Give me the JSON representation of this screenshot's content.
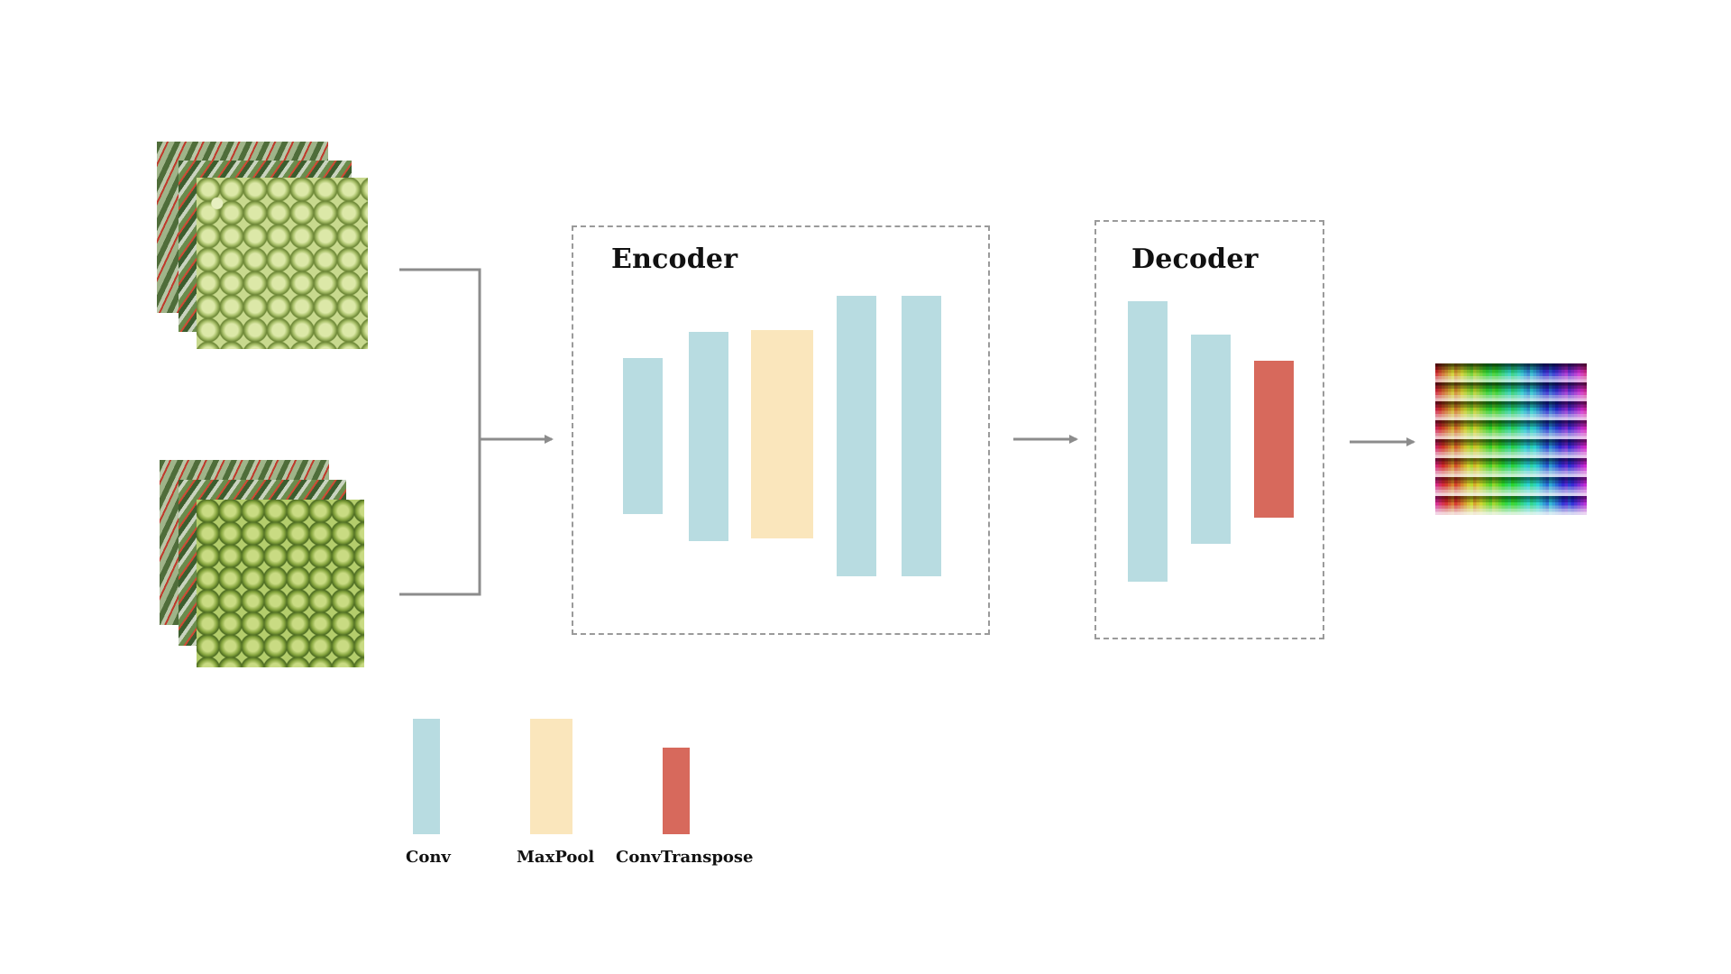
{
  "encoder": {
    "title": "Encoder",
    "layers": [
      "Conv",
      "Conv",
      "MaxPool",
      "Conv",
      "Conv"
    ]
  },
  "decoder": {
    "title": "Decoder",
    "layers": [
      "Conv",
      "Conv",
      "ConvTranspose"
    ]
  },
  "legend": {
    "conv": "Conv",
    "maxpool": "MaxPool",
    "convtranspose": "ConvTranspose"
  },
  "colors": {
    "conv": "#b8dce1",
    "maxpool": "#fae6bc",
    "convtranspose": "#d7695c",
    "connector": "#8c8c8c",
    "dashed_border": "#9a9a9a"
  },
  "inputs": {
    "groups": 2,
    "frames_per_group": 3
  },
  "output": {
    "grid_cells": 8
  }
}
